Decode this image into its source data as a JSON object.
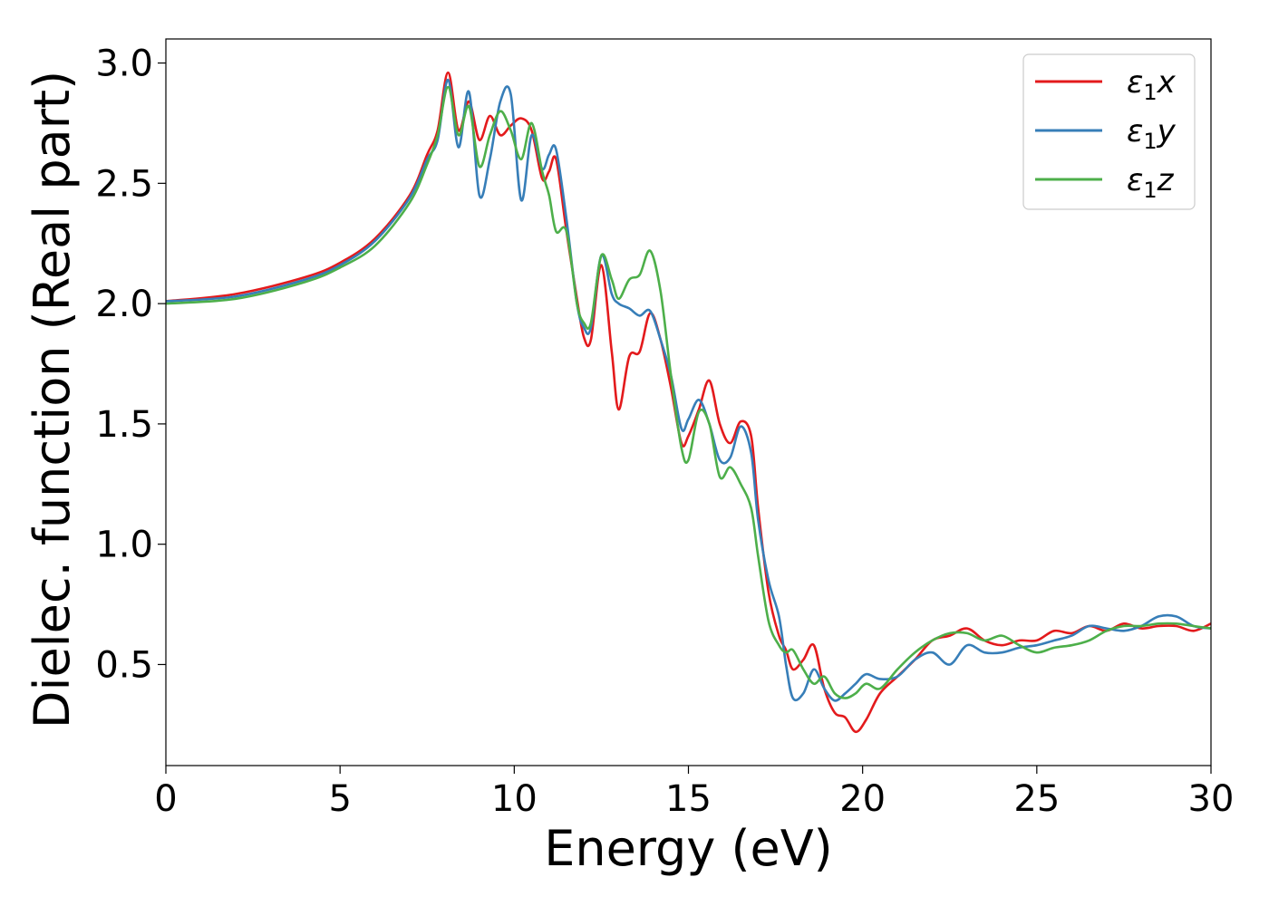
{
  "chart_data": {
    "type": "line",
    "title": "",
    "xlabel": "Energy (eV)",
    "ylabel": "Dielec. function (Real part)",
    "xlim": [
      0,
      30
    ],
    "ylim": [
      0.08,
      3.1
    ],
    "xticks": [
      0,
      5,
      10,
      15,
      20,
      25,
      30
    ],
    "xtick_labels": [
      "0",
      "5",
      "10",
      "15",
      "20",
      "25",
      "30"
    ],
    "yticks": [
      0.5,
      1.0,
      1.5,
      2.0,
      2.5,
      3.0
    ],
    "ytick_labels": [
      "0.5",
      "1.0",
      "1.5",
      "2.0",
      "2.5",
      "3.0"
    ],
    "grid": false,
    "legend_position": "top-right",
    "series": [
      {
        "name": "ε₁x",
        "legend_main": "ε",
        "legend_sub": "1",
        "legend_var": "x",
        "color": "#e31a1c",
        "x": [
          0,
          2,
          4,
          5,
          6,
          7,
          7.5,
          7.8,
          8.1,
          8.4,
          8.7,
          9.0,
          9.3,
          9.6,
          9.9,
          10.2,
          10.5,
          10.8,
          11.0,
          11.2,
          11.5,
          11.8,
          12.0,
          12.2,
          12.5,
          12.8,
          13.0,
          13.3,
          13.6,
          13.9,
          14.2,
          14.5,
          14.8,
          15.0,
          15.3,
          15.6,
          15.9,
          16.2,
          16.5,
          16.8,
          17.0,
          17.3,
          17.6,
          17.8,
          18.0,
          18.3,
          18.6,
          18.9,
          19.2,
          19.5,
          19.8,
          20.1,
          20.5,
          21.0,
          21.5,
          22.0,
          22.5,
          23.0,
          23.5,
          24.0,
          24.5,
          25.0,
          25.5,
          26.0,
          26.5,
          27.0,
          27.5,
          28.0,
          28.5,
          29.0,
          29.5,
          30.0
        ],
        "y": [
          2.01,
          2.04,
          2.11,
          2.17,
          2.27,
          2.45,
          2.62,
          2.72,
          2.96,
          2.72,
          2.84,
          2.68,
          2.78,
          2.7,
          2.74,
          2.77,
          2.72,
          2.52,
          2.55,
          2.6,
          2.3,
          2.02,
          1.86,
          1.85,
          2.16,
          1.8,
          1.56,
          1.78,
          1.8,
          1.96,
          1.85,
          1.65,
          1.42,
          1.45,
          1.56,
          1.68,
          1.5,
          1.42,
          1.51,
          1.45,
          1.15,
          0.8,
          0.62,
          0.56,
          0.48,
          0.52,
          0.58,
          0.4,
          0.3,
          0.28,
          0.22,
          0.27,
          0.38,
          0.45,
          0.52,
          0.6,
          0.62,
          0.65,
          0.6,
          0.58,
          0.6,
          0.6,
          0.64,
          0.63,
          0.66,
          0.64,
          0.67,
          0.65,
          0.66,
          0.66,
          0.64,
          0.67
        ]
      },
      {
        "name": "ε₁y",
        "legend_main": "ε",
        "legend_sub": "1",
        "legend_var": "y",
        "color": "#377eb8",
        "x": [
          0,
          2,
          4,
          5,
          6,
          7,
          7.5,
          7.8,
          8.1,
          8.4,
          8.7,
          9.0,
          9.3,
          9.6,
          9.9,
          10.2,
          10.5,
          10.8,
          11.0,
          11.2,
          11.5,
          11.8,
          12.0,
          12.2,
          12.5,
          12.8,
          13.0,
          13.3,
          13.6,
          13.9,
          14.2,
          14.5,
          14.8,
          15.0,
          15.3,
          15.6,
          15.9,
          16.2,
          16.5,
          16.8,
          17.0,
          17.3,
          17.6,
          17.8,
          18.0,
          18.3,
          18.6,
          18.9,
          19.2,
          19.5,
          19.8,
          20.1,
          20.5,
          21.0,
          21.5,
          22.0,
          22.5,
          23.0,
          23.5,
          24.0,
          24.5,
          25.0,
          25.5,
          26.0,
          26.5,
          27.0,
          27.5,
          28.0,
          28.5,
          29.0,
          29.5,
          30.0
        ],
        "y": [
          2.01,
          2.03,
          2.1,
          2.16,
          2.26,
          2.44,
          2.6,
          2.68,
          2.93,
          2.65,
          2.88,
          2.45,
          2.6,
          2.84,
          2.87,
          2.43,
          2.7,
          2.56,
          2.62,
          2.64,
          2.35,
          2.0,
          1.9,
          1.9,
          2.2,
          2.04,
          2.0,
          1.98,
          1.95,
          1.97,
          1.85,
          1.7,
          1.48,
          1.52,
          1.6,
          1.5,
          1.35,
          1.36,
          1.49,
          1.38,
          1.1,
          0.85,
          0.7,
          0.5,
          0.36,
          0.38,
          0.48,
          0.4,
          0.35,
          0.38,
          0.42,
          0.46,
          0.44,
          0.45,
          0.52,
          0.55,
          0.5,
          0.58,
          0.55,
          0.55,
          0.57,
          0.58,
          0.6,
          0.62,
          0.66,
          0.65,
          0.64,
          0.66,
          0.7,
          0.7,
          0.66,
          0.65
        ]
      },
      {
        "name": "ε₁z",
        "legend_main": "ε",
        "legend_sub": "1",
        "legend_var": "z",
        "color": "#4daf4a",
        "x": [
          0,
          2,
          4,
          5,
          6,
          7,
          7.5,
          7.8,
          8.1,
          8.4,
          8.7,
          9.0,
          9.3,
          9.6,
          9.9,
          10.2,
          10.5,
          10.8,
          11.0,
          11.2,
          11.5,
          11.8,
          12.0,
          12.2,
          12.5,
          12.8,
          13.0,
          13.3,
          13.6,
          13.9,
          14.2,
          14.5,
          14.8,
          15.0,
          15.3,
          15.6,
          15.9,
          16.2,
          16.5,
          16.8,
          17.0,
          17.3,
          17.6,
          17.8,
          18.0,
          18.3,
          18.6,
          18.9,
          19.2,
          19.5,
          19.8,
          20.1,
          20.5,
          21.0,
          21.5,
          22.0,
          22.5,
          23.0,
          23.5,
          24.0,
          24.5,
          25.0,
          25.5,
          26.0,
          26.5,
          27.0,
          27.5,
          28.0,
          28.5,
          29.0,
          29.5,
          30.0
        ],
        "y": [
          2.0,
          2.02,
          2.09,
          2.15,
          2.24,
          2.42,
          2.58,
          2.7,
          2.9,
          2.7,
          2.82,
          2.57,
          2.7,
          2.8,
          2.72,
          2.6,
          2.75,
          2.55,
          2.45,
          2.3,
          2.3,
          2.0,
          1.92,
          1.92,
          2.2,
          2.1,
          2.02,
          2.1,
          2.12,
          2.22,
          2.05,
          1.7,
          1.4,
          1.35,
          1.55,
          1.5,
          1.28,
          1.32,
          1.25,
          1.15,
          0.95,
          0.68,
          0.58,
          0.55,
          0.56,
          0.48,
          0.42,
          0.45,
          0.38,
          0.36,
          0.38,
          0.42,
          0.4,
          0.48,
          0.55,
          0.6,
          0.63,
          0.63,
          0.6,
          0.62,
          0.58,
          0.55,
          0.57,
          0.58,
          0.6,
          0.64,
          0.66,
          0.66,
          0.67,
          0.67,
          0.66,
          0.65
        ]
      }
    ]
  }
}
